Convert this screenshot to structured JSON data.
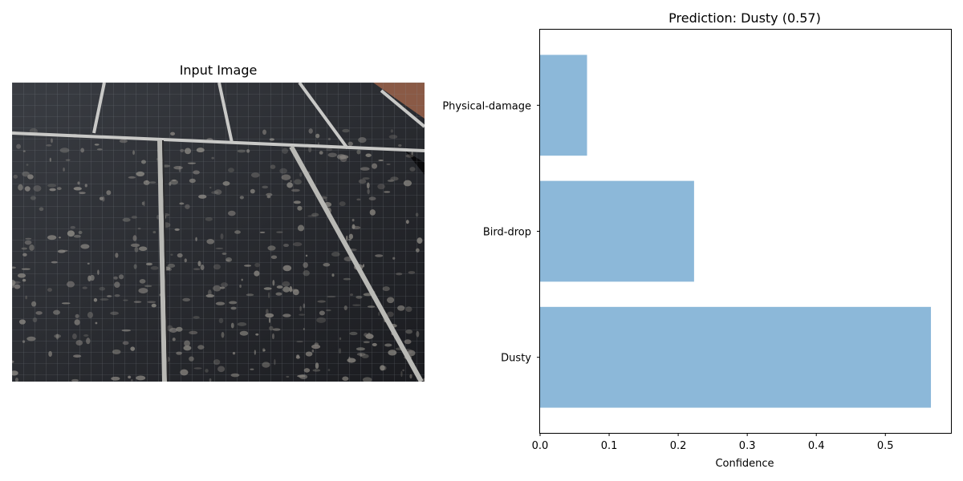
{
  "left_panel": {
    "title": "Input Image"
  },
  "chart_data": {
    "type": "bar",
    "orientation": "horizontal",
    "title": "Prediction: Dusty (0.57)",
    "xlabel": "Confidence",
    "ylabel": "",
    "categories": [
      "Dusty",
      "Bird-drop",
      "Physical-damage"
    ],
    "values": [
      0.566,
      0.223,
      0.068
    ],
    "xlim": [
      0,
      0.595
    ],
    "xticks": [
      0.0,
      0.1,
      0.2,
      0.3,
      0.4,
      0.5
    ],
    "xtick_labels": [
      "0.0",
      "0.1",
      "0.2",
      "0.3",
      "0.4",
      "0.5"
    ],
    "bar_color": "#8cb8d9",
    "grid": false,
    "legend": "none"
  }
}
